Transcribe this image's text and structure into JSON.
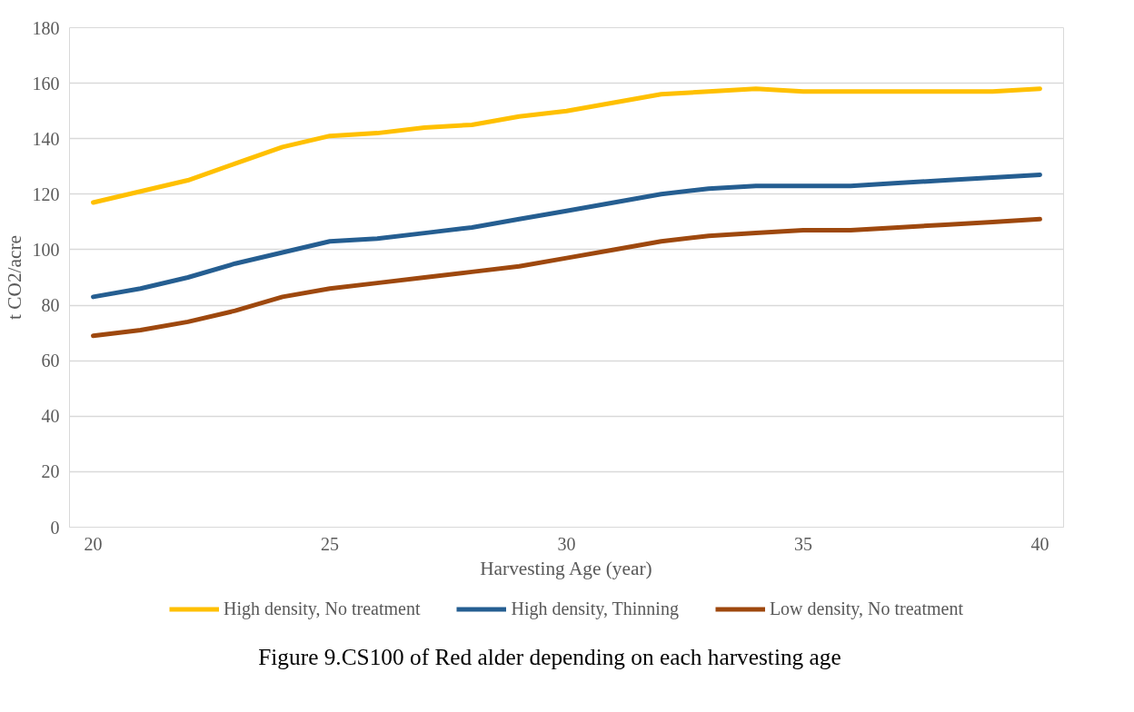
{
  "chart_data": {
    "type": "line",
    "title": "Figure 9.CS100 of Red alder depending on each harvesting age",
    "xlabel": "Harvesting Age (year)",
    "ylabel": "t CO2/acre",
    "x": [
      20,
      21,
      22,
      23,
      24,
      25,
      26,
      27,
      28,
      29,
      30,
      31,
      32,
      33,
      34,
      35,
      36,
      37,
      38,
      39,
      40
    ],
    "xlim": [
      19.5,
      40.5
    ],
    "xticks": [
      20,
      25,
      30,
      35,
      40
    ],
    "ylim": [
      0,
      180
    ],
    "yticks": [
      0,
      20,
      40,
      60,
      80,
      100,
      120,
      140,
      160,
      180
    ],
    "grid": "y",
    "legend": "bottom",
    "marker": "none",
    "line_style": "solid",
    "series": [
      {
        "name": "High density, No treatment",
        "color": "#ffc000",
        "values": [
          117,
          121,
          125,
          131,
          137,
          141,
          142,
          144,
          145,
          148,
          150,
          153,
          156,
          157,
          158,
          157,
          157,
          157,
          157,
          157,
          158
        ]
      },
      {
        "name": "High density, Thinning",
        "color": "#255e91",
        "values": [
          83,
          86,
          90,
          95,
          99,
          103,
          104,
          106,
          108,
          111,
          114,
          117,
          120,
          122,
          123,
          123,
          123,
          124,
          125,
          126,
          127
        ]
      },
      {
        "name": "Low density, No treatment",
        "color": "#9e480e",
        "values": [
          69,
          71,
          74,
          78,
          83,
          86,
          88,
          90,
          92,
          94,
          97,
          100,
          103,
          105,
          106,
          107,
          107,
          108,
          109,
          110,
          111
        ]
      }
    ]
  }
}
